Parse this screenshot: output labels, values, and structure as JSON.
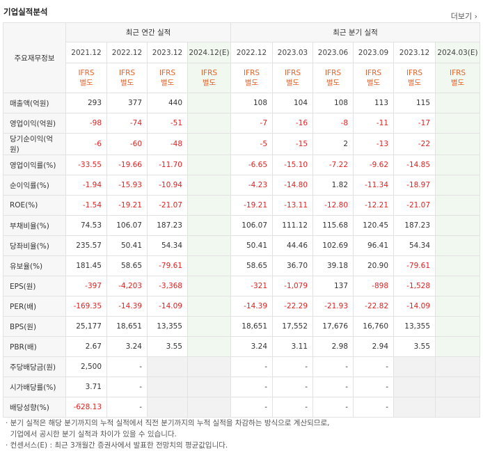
{
  "title": "기업실적분석",
  "more_label": "더보기",
  "header": {
    "row_label": "주요재무정보",
    "annual_group": "최근 연간 실적",
    "quarter_group": "최근 분기 실적",
    "annual_periods": [
      "2021.12",
      "2022.12",
      "2023.12",
      "2024.12(E)"
    ],
    "quarter_periods": [
      "2022.12",
      "2023.03",
      "2023.06",
      "2023.09",
      "2023.12",
      "2024.03(E)"
    ],
    "ifrs_line1": "IFRS",
    "ifrs_line2": "별도"
  },
  "rows": [
    {
      "label": "매출액(억원)",
      "values": [
        "293",
        "377",
        "440",
        "",
        "108",
        "104",
        "108",
        "113",
        "115",
        ""
      ]
    },
    {
      "label": "영업이익(억원)",
      "values": [
        "-98",
        "-74",
        "-51",
        "",
        "-7",
        "-16",
        "-8",
        "-11",
        "-17",
        ""
      ]
    },
    {
      "label": "당기순이익(억원)",
      "values": [
        "-6",
        "-60",
        "-48",
        "",
        "-5",
        "-15",
        "2",
        "-13",
        "-22",
        ""
      ]
    },
    {
      "label": "영업이익률(%)",
      "values": [
        "-33.55",
        "-19.66",
        "-11.70",
        "",
        "-6.65",
        "-15.10",
        "-7.22",
        "-9.62",
        "-14.85",
        ""
      ]
    },
    {
      "label": "순이익률(%)",
      "values": [
        "-1.94",
        "-15.93",
        "-10.94",
        "",
        "-4.23",
        "-14.80",
        "1.82",
        "-11.34",
        "-18.97",
        ""
      ]
    },
    {
      "label": "ROE(%)",
      "values": [
        "-1.54",
        "-19.21",
        "-21.07",
        "",
        "-19.21",
        "-13.11",
        "-12.80",
        "-12.21",
        "-21.07",
        ""
      ]
    },
    {
      "label": "부채비율(%)",
      "values": [
        "74.53",
        "106.07",
        "187.23",
        "",
        "106.07",
        "111.12",
        "115.68",
        "120.45",
        "187.23",
        ""
      ]
    },
    {
      "label": "당좌비율(%)",
      "values": [
        "235.57",
        "50.41",
        "54.34",
        "",
        "50.41",
        "44.46",
        "102.69",
        "96.41",
        "54.34",
        ""
      ]
    },
    {
      "label": "유보율(%)",
      "values": [
        "181.45",
        "58.65",
        "-79.61",
        "",
        "58.65",
        "36.70",
        "39.18",
        "20.90",
        "-79.61",
        ""
      ]
    },
    {
      "label": "EPS(원)",
      "values": [
        "-397",
        "-4,203",
        "-3,368",
        "",
        "-321",
        "-1,079",
        "137",
        "-898",
        "-1,528",
        ""
      ]
    },
    {
      "label": "PER(배)",
      "values": [
        "-169.35",
        "-14.39",
        "-14.09",
        "",
        "-14.39",
        "-22.29",
        "-21.93",
        "-22.82",
        "-14.09",
        ""
      ]
    },
    {
      "label": "BPS(원)",
      "values": [
        "25,177",
        "18,651",
        "13,355",
        "",
        "18,651",
        "17,552",
        "17,676",
        "16,760",
        "13,355",
        ""
      ]
    },
    {
      "label": "PBR(배)",
      "values": [
        "2.67",
        "3.24",
        "3.55",
        "",
        "3.24",
        "3.11",
        "2.98",
        "2.94",
        "3.55",
        ""
      ]
    },
    {
      "label": "주당배당금(원)",
      "values": [
        "2,500",
        "-",
        "",
        "",
        "-",
        "-",
        "-",
        "-",
        "",
        ""
      ]
    },
    {
      "label": "시가배당률(%)",
      "values": [
        "3.71",
        "-",
        "",
        "",
        "-",
        "-",
        "-",
        "-",
        "",
        ""
      ]
    },
    {
      "label": "배당성향(%)",
      "values": [
        "-628.13",
        "-",
        "",
        "",
        "-",
        "-",
        "-",
        "-",
        "",
        ""
      ]
    }
  ],
  "notes": [
    "· 분기 실적은 해당 분기까지의 누적 실적에서 직전 분기까지의 누적 실적을 차감하는 방식으로 계산되므로,",
    "  기업에서 공시한 분기 실적과 차이가 있을 수 있습니다.",
    "· 컨센서스(E) : 최근 3개월간 증권사에서 발표한 전망치의 평균값입니다."
  ],
  "colors": {
    "negative": "#e02121",
    "ifrs": "#e5622c",
    "estimate_bg": "#f1f8ef"
  }
}
